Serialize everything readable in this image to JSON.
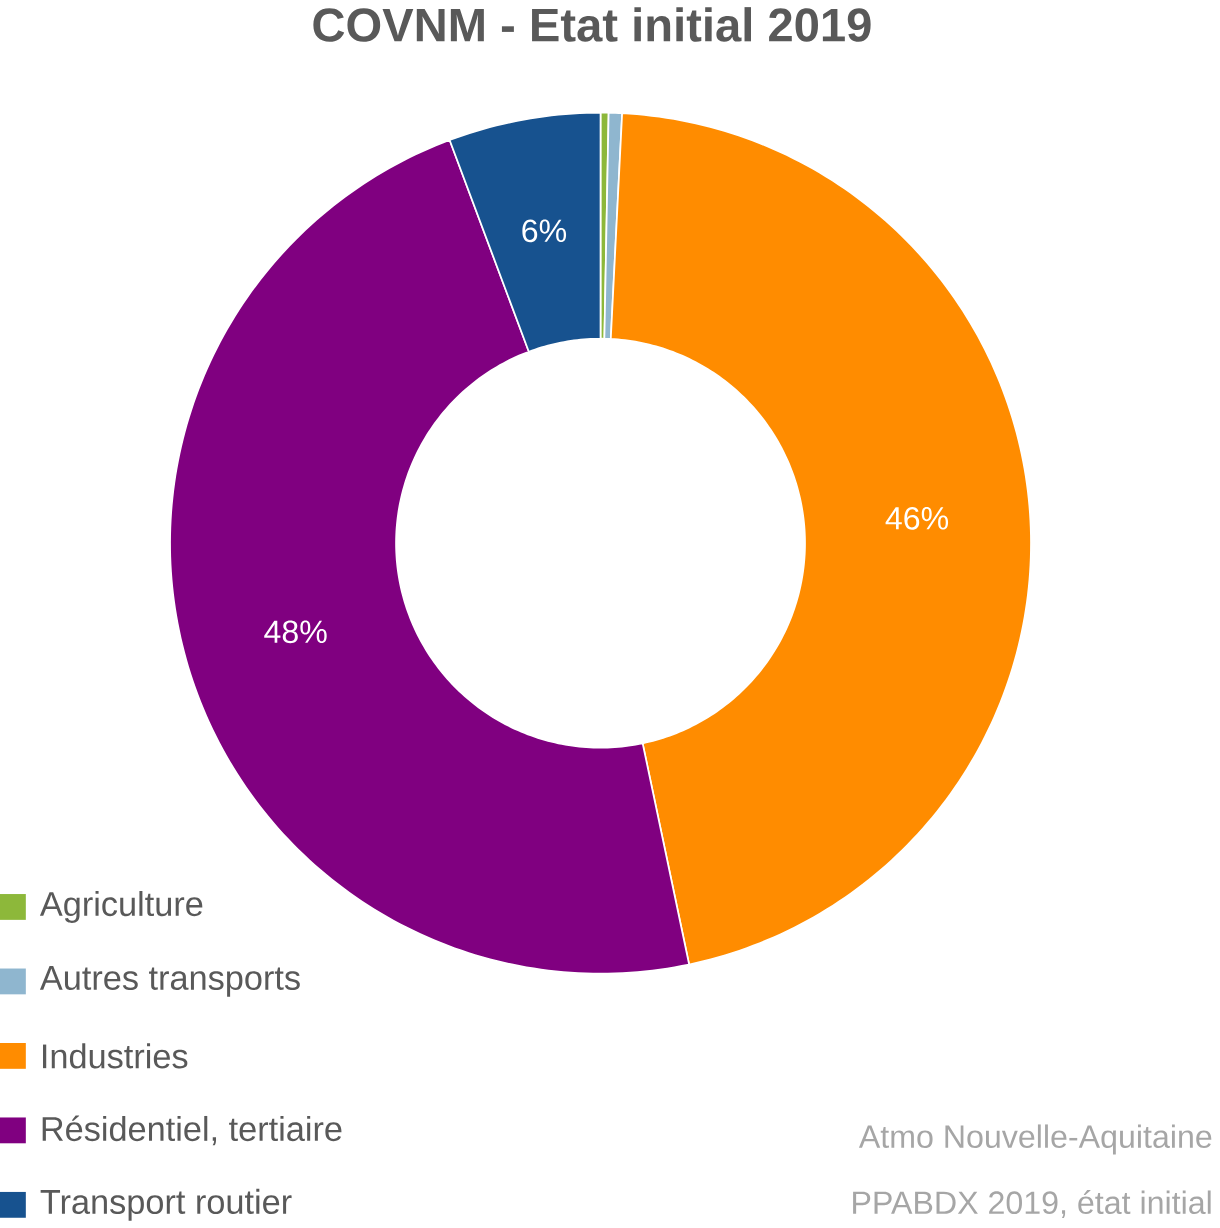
{
  "chart_data": {
    "type": "donut",
    "title": "COVNM - Etat initial  2019",
    "categories": [
      "Agriculture",
      "Autres transports",
      "Industries",
      "Résidentiel, tertiaire",
      "Transport routier"
    ],
    "values": [
      0.3,
      0.5,
      45.9,
      47.6,
      5.7
    ],
    "colors": [
      "#8db83a",
      "#8fb6cf",
      "#ff8c00",
      "#800080",
      "#17528f"
    ],
    "value_labels": [
      null,
      null,
      "46%",
      "48%",
      "6%"
    ],
    "legend": "bottom left",
    "annotations": [
      "Atmo Nouvelle-Aquitaine",
      "PPABDX 2019, état initial"
    ]
  }
}
